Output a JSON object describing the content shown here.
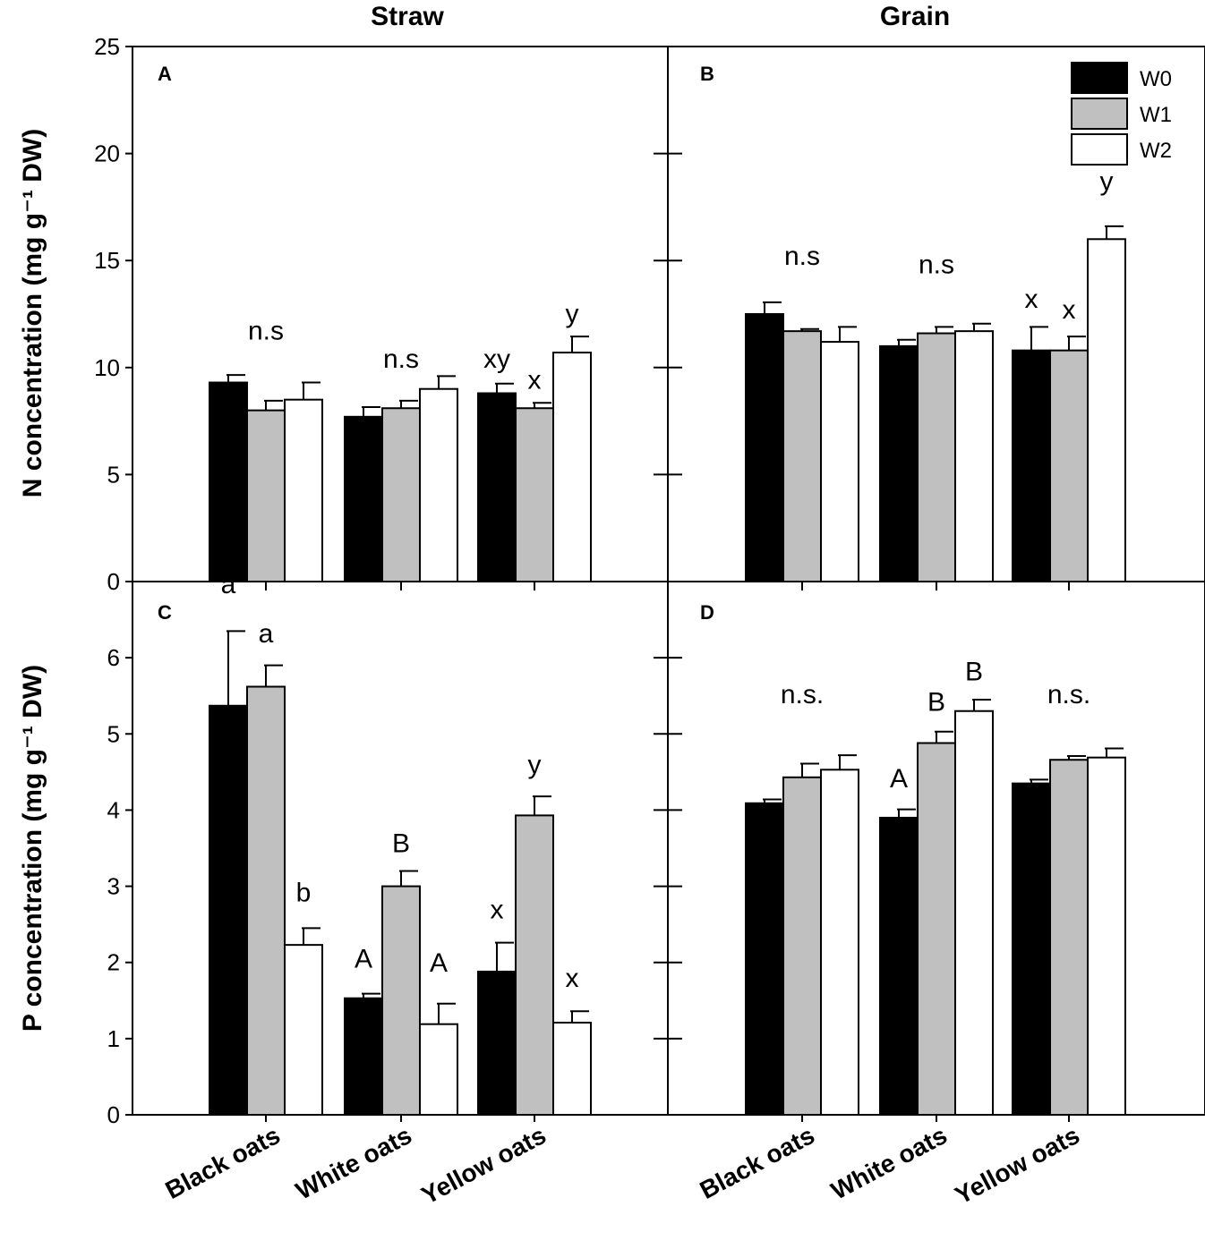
{
  "column_titles": {
    "left": "Straw",
    "right": "Grain"
  },
  "y_axis_labels": {
    "top": "N concentration (mg g⁻¹ DW)",
    "bottom": "P concentration (mg g⁻¹ DW)"
  },
  "colors": {
    "w0": "#000000",
    "w1": "#c0c0c0",
    "w2": "#ffffff"
  },
  "legend": [
    {
      "name": "W0",
      "color": "#000000"
    },
    {
      "name": "W1",
      "color": "#c0c0c0"
    },
    {
      "name": "W2",
      "color": "#ffffff"
    }
  ],
  "chart_data": [
    {
      "panel": "A",
      "type": "bar",
      "column": "Straw",
      "row": "top",
      "ylabel": "N concentration (mg g⁻¹ DW)",
      "ylim": [
        0,
        25
      ],
      "yticks": [
        0,
        5,
        10,
        15,
        20,
        25
      ],
      "categories": [
        "Black oats",
        "White oats",
        "Yellow oats"
      ],
      "series": [
        {
          "name": "W0",
          "values": [
            9.3,
            7.7,
            8.8
          ],
          "errors": [
            0.35,
            0.45,
            0.45
          ]
        },
        {
          "name": "W1",
          "values": [
            8.0,
            8.1,
            8.1
          ],
          "errors": [
            0.45,
            0.35,
            0.25
          ]
        },
        {
          "name": "W2",
          "values": [
            8.5,
            9.0,
            10.7
          ],
          "errors": [
            0.8,
            0.6,
            0.75
          ]
        }
      ],
      "annotations": [
        {
          "category": 0,
          "series": 1,
          "text": "n.s",
          "value": 11.3
        },
        {
          "category": 1,
          "series": 1,
          "text": "n.s",
          "value": 10.0
        },
        {
          "category": 2,
          "series": 0,
          "text": "xy",
          "value": 10.0
        },
        {
          "category": 2,
          "series": 1,
          "text": "x",
          "value": 9.0
        },
        {
          "category": 2,
          "series": 2,
          "text": "y",
          "value": 12.1
        }
      ]
    },
    {
      "panel": "B",
      "type": "bar",
      "column": "Grain",
      "row": "top",
      "ylabel": "N concentration (mg g⁻¹ DW)",
      "ylim": [
        0,
        25
      ],
      "yticks": [
        0,
        5,
        10,
        15,
        20,
        25
      ],
      "categories": [
        "Black oats",
        "White oats",
        "Yellow oats"
      ],
      "series": [
        {
          "name": "W0",
          "values": [
            12.5,
            11.0,
            10.8
          ],
          "errors": [
            0.55,
            0.3,
            1.1
          ]
        },
        {
          "name": "W1",
          "values": [
            11.7,
            11.6,
            10.8
          ],
          "errors": [
            0.1,
            0.3,
            0.65
          ]
        },
        {
          "name": "W2",
          "values": [
            11.2,
            11.7,
            16.0
          ],
          "errors": [
            0.7,
            0.35,
            0.6
          ]
        }
      ],
      "annotations": [
        {
          "category": 0,
          "series": 1,
          "text": "n.s",
          "value": 14.8
        },
        {
          "category": 1,
          "series": 1,
          "text": "n.s",
          "value": 14.4
        },
        {
          "category": 2,
          "series": 0,
          "text": "x",
          "value": 12.8
        },
        {
          "category": 2,
          "series": 1,
          "text": "x",
          "value": 12.3
        },
        {
          "category": 2,
          "series": 2,
          "text": "y",
          "value": 18.3
        }
      ]
    },
    {
      "panel": "C",
      "type": "bar",
      "column": "Straw",
      "row": "bottom",
      "ylabel": "P concentration (mg g⁻¹ DW)",
      "ylim": [
        0,
        7
      ],
      "yticks": [
        0,
        1,
        2,
        3,
        4,
        5,
        6
      ],
      "categories": [
        "Black oats",
        "White oats",
        "Yellow oats"
      ],
      "series": [
        {
          "name": "W0",
          "values": [
            5.37,
            1.53,
            1.88
          ],
          "errors": [
            0.98,
            0.06,
            0.38
          ]
        },
        {
          "name": "W1",
          "values": [
            5.62,
            3.0,
            3.93
          ],
          "errors": [
            0.28,
            0.2,
            0.25
          ]
        },
        {
          "name": "W2",
          "values": [
            2.23,
            1.19,
            1.21
          ],
          "errors": [
            0.22,
            0.27,
            0.15
          ]
        }
      ],
      "annotations": [
        {
          "category": 0,
          "series": 0,
          "text": "a",
          "value": 6.85
        },
        {
          "category": 0,
          "series": 1,
          "text": "a",
          "value": 6.2
        },
        {
          "category": 0,
          "series": 2,
          "text": "b",
          "value": 2.8
        },
        {
          "category": 1,
          "series": 0,
          "text": "A",
          "value": 1.93
        },
        {
          "category": 1,
          "series": 1,
          "text": "B",
          "value": 3.45
        },
        {
          "category": 1,
          "series": 2,
          "text": "A",
          "value": 1.88
        },
        {
          "category": 2,
          "series": 0,
          "text": "x",
          "value": 2.58
        },
        {
          "category": 2,
          "series": 1,
          "text": "y",
          "value": 4.48
        },
        {
          "category": 2,
          "series": 2,
          "text": "x",
          "value": 1.68
        }
      ]
    },
    {
      "panel": "D",
      "type": "bar",
      "column": "Grain",
      "row": "bottom",
      "ylabel": "P concentration (mg g⁻¹ DW)",
      "ylim": [
        0,
        7
      ],
      "yticks": [
        0,
        1,
        2,
        3,
        4,
        5,
        6
      ],
      "categories": [
        "Black oats",
        "White oats",
        "Yellow oats"
      ],
      "series": [
        {
          "name": "W0",
          "values": [
            4.09,
            3.9,
            4.35
          ],
          "errors": [
            0.05,
            0.11,
            0.05
          ]
        },
        {
          "name": "W1",
          "values": [
            4.43,
            4.88,
            4.66
          ],
          "errors": [
            0.18,
            0.15,
            0.05
          ]
        },
        {
          "name": "W2",
          "values": [
            4.53,
            5.3,
            4.69
          ],
          "errors": [
            0.19,
            0.15,
            0.12
          ]
        }
      ],
      "annotations": [
        {
          "category": 0,
          "series": 1,
          "text": "n.s.",
          "value": 5.4
        },
        {
          "category": 1,
          "series": 0,
          "text": "A",
          "value": 4.3
        },
        {
          "category": 1,
          "series": 1,
          "text": "B",
          "value": 5.3
        },
        {
          "category": 1,
          "series": 2,
          "text": "B",
          "value": 5.7
        },
        {
          "category": 2,
          "series": 1,
          "text": "n.s.",
          "value": 5.4
        }
      ]
    }
  ]
}
